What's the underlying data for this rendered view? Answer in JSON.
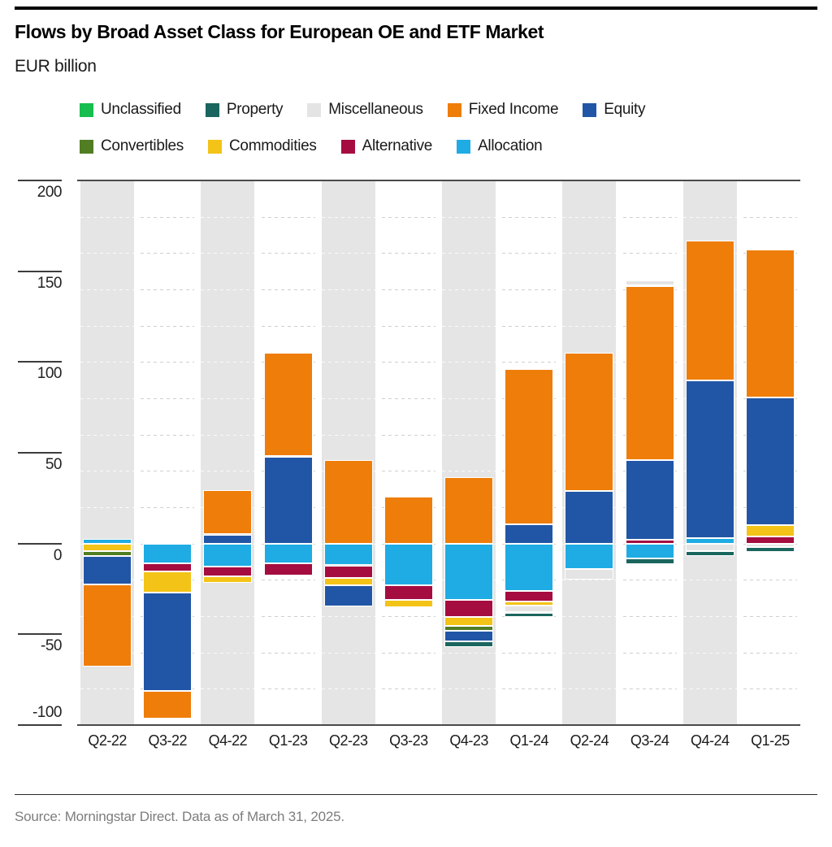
{
  "header": {
    "title": "Flows by Broad Asset Class for European OE and ETF Market",
    "subtitle": "EUR billion"
  },
  "legend": {
    "rows": [
      [
        "Unclassified",
        "Property",
        "Miscellaneous",
        "Fixed Income",
        "Equity"
      ],
      [
        "Convertibles",
        "Commodities",
        "Alternative",
        "Allocation"
      ]
    ]
  },
  "chart_data": {
    "type": "bar",
    "stacked": true,
    "title": "Flows by Broad Asset Class for European OE and ETF Market",
    "ylabel": "EUR billion",
    "categories": [
      "Q2-22",
      "Q3-22",
      "Q4-22",
      "Q1-23",
      "Q2-23",
      "Q3-23",
      "Q4-23",
      "Q1-24",
      "Q2-24",
      "Q3-24",
      "Q4-24",
      "Q1-25"
    ],
    "series": [
      {
        "name": "Unclassified",
        "color": "#17BD4F",
        "values": [
          0,
          0,
          0,
          0,
          0,
          0,
          0,
          0,
          0,
          0,
          0,
          0
        ]
      },
      {
        "name": "Property",
        "color": "#1A665E",
        "values": [
          0,
          0,
          0,
          0,
          0,
          0,
          -3,
          -2.5,
          0,
          -3.5,
          -3,
          -2.5
        ]
      },
      {
        "name": "Miscellaneous",
        "color": "#E4E4E4",
        "values": [
          0,
          0,
          0,
          0,
          0,
          0,
          0,
          -4,
          -6,
          3,
          -4,
          -2
        ]
      },
      {
        "name": "Fixed Income",
        "color": "#EF7D0A",
        "values": [
          -45.5,
          -15.5,
          24.5,
          57,
          46,
          26,
          36.5,
          85.5,
          76,
          96,
          77,
          81.5
        ]
      },
      {
        "name": "Equity",
        "color": "#2156A6",
        "values": [
          -15.5,
          -54,
          5,
          48,
          -11.5,
          0,
          -6,
          10.5,
          29,
          44,
          87,
          70.5
        ]
      },
      {
        "name": "Convertibles",
        "color": "#517D23",
        "values": [
          -3,
          0,
          0,
          0,
          0,
          0,
          -2.5,
          0,
          0,
          0,
          0,
          0
        ]
      },
      {
        "name": "Commodities",
        "color": "#F3C317",
        "values": [
          -4,
          -11.5,
          -3.5,
          0,
          -4,
          -4,
          -5,
          -2,
          0,
          0,
          0,
          6
        ]
      },
      {
        "name": "Alternative",
        "color": "#A50C3F",
        "values": [
          0,
          -4.5,
          -5.5,
          -6.5,
          -7,
          -8,
          -9.5,
          -6,
          0,
          2,
          0,
          4
        ]
      },
      {
        "name": "Allocation",
        "color": "#1FACE4",
        "values": [
          2.5,
          -11,
          -12.5,
          -11,
          -12,
          -23,
          -31,
          -26,
          -14,
          -8,
          3,
          0
        ]
      }
    ],
    "stack_order": [
      "Allocation",
      "Alternative",
      "Commodities",
      "Convertibles",
      "Equity",
      "Fixed Income",
      "Miscellaneous",
      "Property",
      "Unclassified"
    ],
    "ylim": [
      -100,
      200
    ],
    "y_ticks": [
      200,
      150,
      100,
      50,
      0,
      -50,
      -100
    ],
    "minor_grid_values": [
      180,
      160,
      140,
      120,
      100,
      80,
      60,
      40,
      20,
      0,
      -20,
      -40,
      -60,
      -80
    ],
    "grid": "dashed-minor",
    "legend_position": "top",
    "alt_column_shading": "#E5E5E5"
  },
  "footer": {
    "source": "Source: Morningstar Direct. Data as of March 31, 2025."
  }
}
